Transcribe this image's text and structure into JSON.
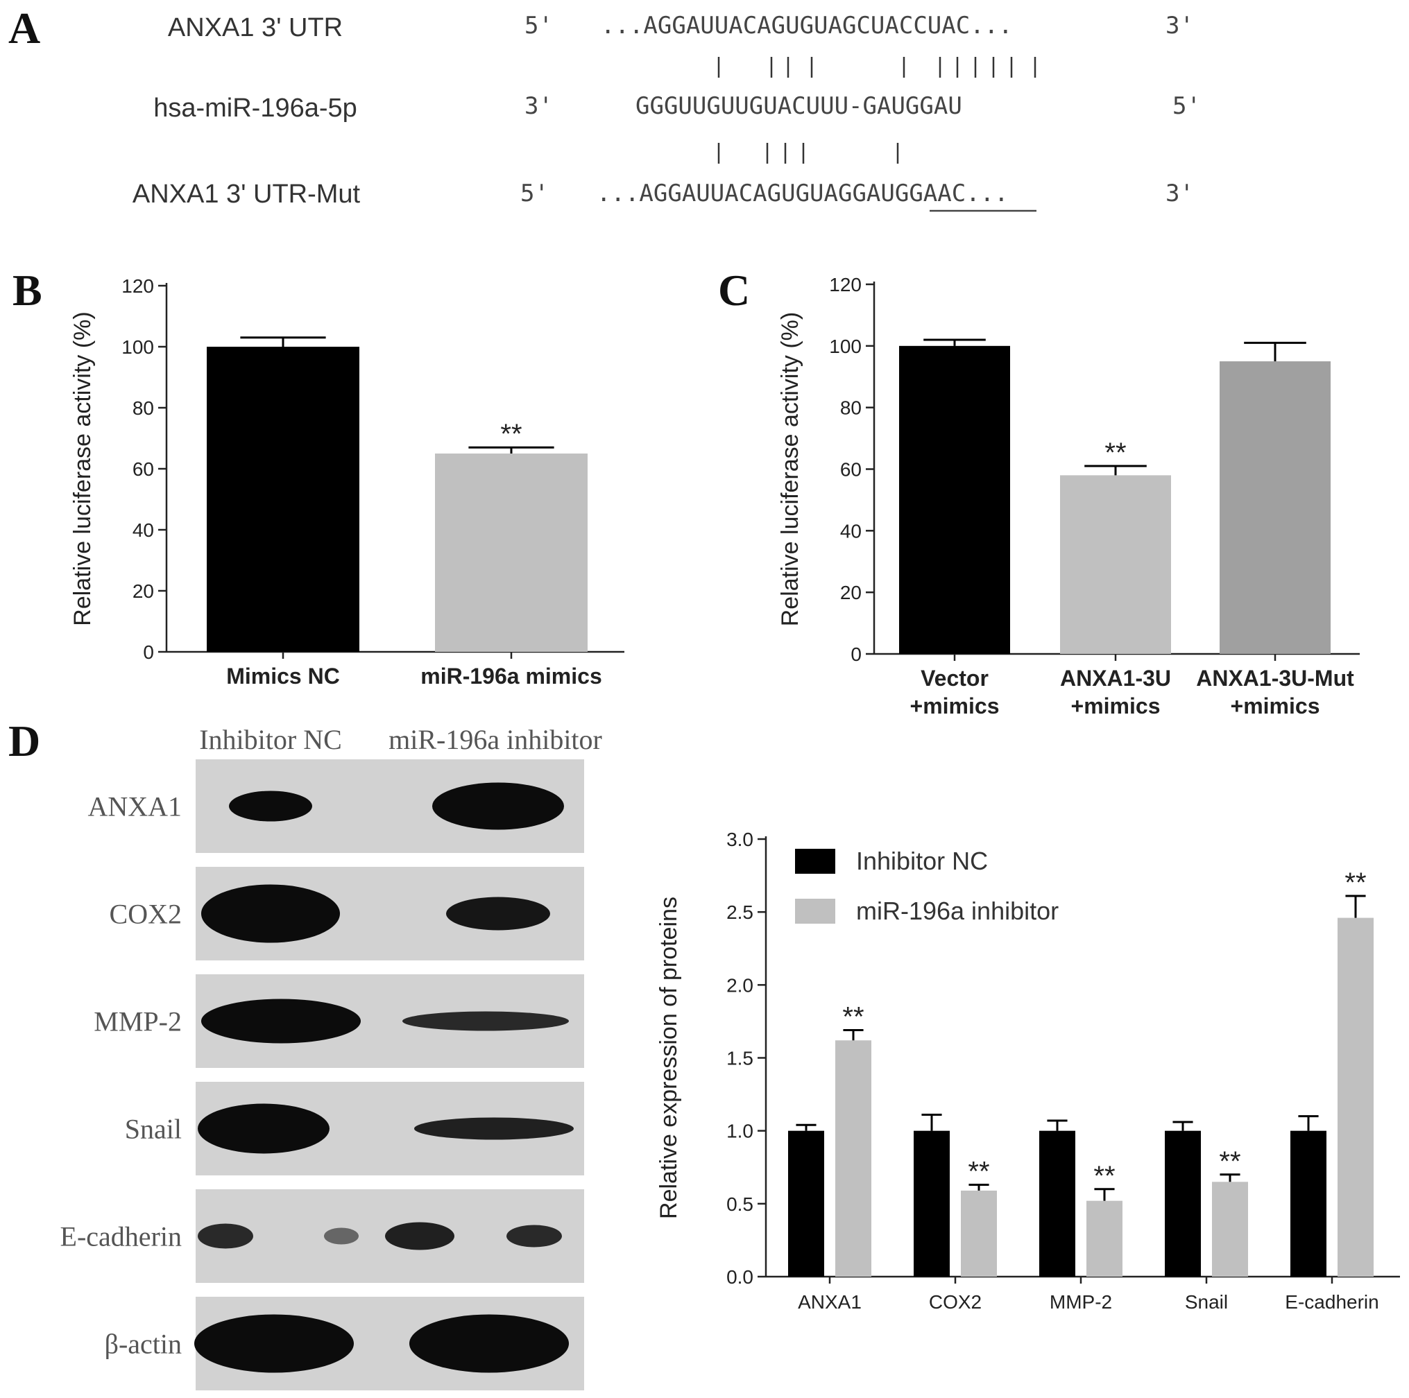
{
  "panels": {
    "a": "A",
    "b": "B",
    "c": "C",
    "d": "D"
  },
  "sequence": {
    "rows": [
      {
        "label": "ANXA1 3' UTR",
        "left_prime": "5'",
        "seq": "...AGGAUUACAGUGUAGCUACCUAC...",
        "right_prime": "3'"
      },
      {
        "label": "hsa-miR-196a-5p",
        "left_prime": "3'",
        "seq": "GGGUUGUUGUACUUU-GAUGGAU",
        "right_prime": "5'"
      },
      {
        "label": "ANXA1 3' UTR-Mut",
        "left_prime": "5'",
        "seq": "...AGGAUUACAGUGUAGGAUGGAAC...",
        "right_prime": "3'"
      }
    ]
  },
  "blot": {
    "columns": [
      "Inhibitor NC",
      "miR-196a inhibitor"
    ],
    "rows": [
      "ANXA1",
      "COX2",
      "MMP-2",
      "Snail",
      "E-cadherin",
      "β-actin"
    ]
  },
  "chart_data": [
    {
      "id": "B",
      "type": "bar",
      "categories": [
        "Mimics NC",
        "miR-196a mimics"
      ],
      "values": [
        100,
        65
      ],
      "errors": [
        3,
        2
      ],
      "colors": [
        "#000000",
        "#c0c0c0"
      ],
      "significance": [
        "",
        "**"
      ],
      "ylabel": "Relative luciferase activity (%)",
      "ylim": [
        0,
        120
      ],
      "yticks": [
        0,
        20,
        40,
        60,
        80,
        100,
        120
      ],
      "ytick_labels": [
        "0",
        "20",
        "40",
        "60",
        "80",
        "100",
        "120"
      ]
    },
    {
      "id": "C",
      "type": "bar",
      "categories": [
        [
          "Vector",
          "+mimics"
        ],
        [
          "ANXA1-3U",
          "+mimics"
        ],
        [
          "ANXA1-3U-Mut",
          "+mimics"
        ]
      ],
      "values": [
        100,
        58,
        95
      ],
      "errors": [
        2,
        3,
        6
      ],
      "colors": [
        "#000000",
        "#c0c0c0",
        "#a0a0a0"
      ],
      "significance": [
        "",
        "**",
        ""
      ],
      "ylabel": "Relative luciferase activity (%)",
      "ylim": [
        0,
        120
      ],
      "yticks": [
        0,
        20,
        40,
        60,
        80,
        100,
        120
      ],
      "ytick_labels": [
        "0",
        "20",
        "40",
        "60",
        "80",
        "100",
        "120"
      ]
    },
    {
      "id": "D",
      "type": "bar",
      "categories": [
        "ANXA1",
        "COX2",
        "MMP-2",
        "Snail",
        "E-cadherin"
      ],
      "series": [
        {
          "name": "Inhibitor NC",
          "color": "#000000",
          "values": [
            1.0,
            1.0,
            1.0,
            1.0,
            1.0
          ],
          "errors": [
            0.04,
            0.11,
            0.07,
            0.06,
            0.1
          ],
          "significance": [
            "",
            "",
            "",
            "",
            ""
          ]
        },
        {
          "name": "miR-196a inhibitor",
          "color": "#c0c0c0",
          "values": [
            1.62,
            0.59,
            0.52,
            0.65,
            2.46
          ],
          "errors": [
            0.07,
            0.04,
            0.08,
            0.05,
            0.15
          ],
          "significance": [
            "**",
            "**",
            "**",
            "**",
            "**"
          ]
        }
      ],
      "ylabel": "Relative expression of proteins",
      "ylim": [
        0,
        3.0
      ],
      "yticks": [
        0,
        0.5,
        1.0,
        1.5,
        2.0,
        2.5,
        3.0
      ],
      "ytick_labels": [
        "0.0",
        "0.5",
        "1.0",
        "1.5",
        "2.0",
        "2.5",
        "3.0"
      ],
      "legend": "top-left"
    }
  ]
}
